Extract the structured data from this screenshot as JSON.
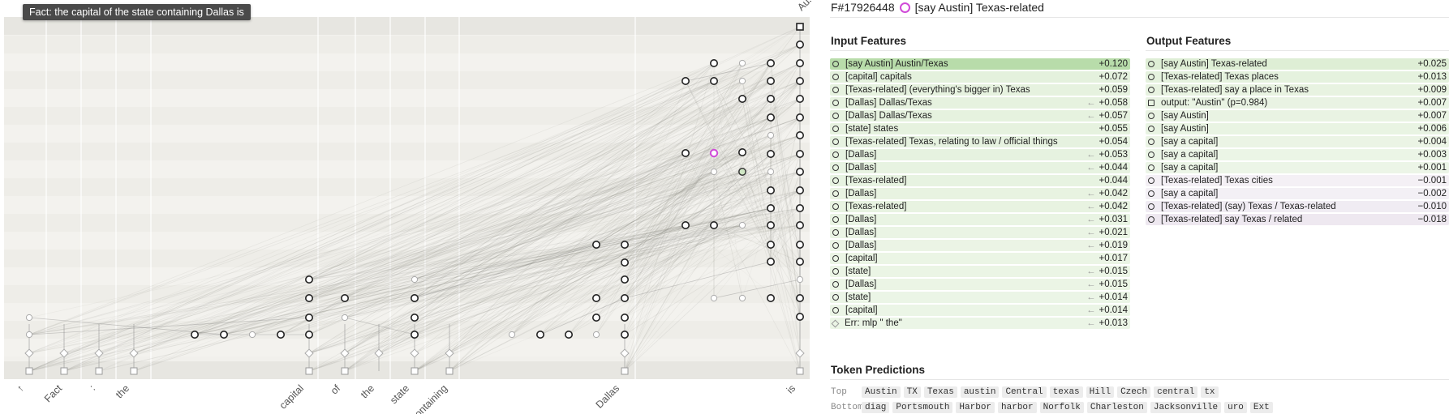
{
  "tooltip": "Fact: the capital of the state containing Dallas is",
  "graph": {
    "tokens": [
      "↑",
      "Fact",
      ":",
      "the",
      "capital",
      "of",
      "the",
      "state",
      "containing",
      "Dallas",
      "is"
    ],
    "top_label": "Aus"
  },
  "header": {
    "id": "F#17926448",
    "title": "[say Austin] Texas-related"
  },
  "input_features": {
    "title": "Input Features",
    "rows": [
      {
        "label": "[say Austin] Austin/Texas",
        "value": "+0.120",
        "arrow": "",
        "icon": "circle"
      },
      {
        "label": "[capital] capitals",
        "value": "+0.072",
        "arrow": "",
        "icon": "circle"
      },
      {
        "label": "[Texas-related] (everything's bigger in) Texas",
        "value": "+0.059",
        "arrow": "",
        "icon": "circle"
      },
      {
        "label": "[Dallas] Dallas/Texas",
        "value": "+0.058",
        "arrow": "←",
        "icon": "circle"
      },
      {
        "label": "[Dallas] Dallas/Texas",
        "value": "+0.057",
        "arrow": "←",
        "icon": "circle"
      },
      {
        "label": "[state] states",
        "value": "+0.055",
        "arrow": "",
        "icon": "circle"
      },
      {
        "label": "[Texas-related] Texas, relating to law / official things",
        "value": "+0.054",
        "arrow": "",
        "icon": "circle"
      },
      {
        "label": "[Dallas]",
        "value": "+0.053",
        "arrow": "←",
        "icon": "circle"
      },
      {
        "label": "[Dallas]",
        "value": "+0.044",
        "arrow": "←",
        "icon": "circle"
      },
      {
        "label": "[Texas-related]",
        "value": "+0.044",
        "arrow": "",
        "icon": "circle"
      },
      {
        "label": "[Dallas]",
        "value": "+0.042",
        "arrow": "←",
        "icon": "circle"
      },
      {
        "label": "[Texas-related]",
        "value": "+0.042",
        "arrow": "←",
        "icon": "circle"
      },
      {
        "label": "[Dallas]",
        "value": "+0.031",
        "arrow": "←",
        "icon": "circle"
      },
      {
        "label": "[Dallas]",
        "value": "+0.021",
        "arrow": "←",
        "icon": "circle"
      },
      {
        "label": "[Dallas]",
        "value": "+0.019",
        "arrow": "←",
        "icon": "circle"
      },
      {
        "label": "[capital]",
        "value": "+0.017",
        "arrow": "",
        "icon": "circle"
      },
      {
        "label": "[state]",
        "value": "+0.015",
        "arrow": "←",
        "icon": "circle"
      },
      {
        "label": "[Dallas]",
        "value": "+0.015",
        "arrow": "←",
        "icon": "circle"
      },
      {
        "label": "[state]",
        "value": "+0.014",
        "arrow": "←",
        "icon": "circle"
      },
      {
        "label": "[capital]",
        "value": "+0.014",
        "arrow": "←",
        "icon": "circle"
      },
      {
        "label": "Err: mlp \" the\"",
        "value": "+0.013",
        "arrow": "←",
        "icon": "diamond"
      }
    ]
  },
  "output_features": {
    "title": "Output Features",
    "rows": [
      {
        "label": "[say Austin] Texas-related",
        "value": "+0.025",
        "icon": "circle"
      },
      {
        "label": "[Texas-related] Texas places",
        "value": "+0.013",
        "icon": "circle"
      },
      {
        "label": "[Texas-related] say a place in Texas",
        "value": "+0.009",
        "icon": "circle"
      },
      {
        "label": "output: \"Austin\" (p=0.984)",
        "value": "+0.007",
        "icon": "square"
      },
      {
        "label": "[say Austin]",
        "value": "+0.007",
        "icon": "circle"
      },
      {
        "label": "[say Austin]",
        "value": "+0.006",
        "icon": "circle"
      },
      {
        "label": "[say a capital]",
        "value": "+0.004",
        "icon": "circle"
      },
      {
        "label": "[say a capital]",
        "value": "+0.003",
        "icon": "circle"
      },
      {
        "label": "[say a capital]",
        "value": "+0.001",
        "icon": "circle"
      },
      {
        "label": "[Texas-related] Texas cities",
        "value": "−0.001",
        "icon": "circle"
      },
      {
        "label": "[say a capital]",
        "value": "−0.002",
        "icon": "circle"
      },
      {
        "label": "[Texas-related] (say) Texas / Texas-related",
        "value": "−0.010",
        "icon": "circle"
      },
      {
        "label": "[Texas-related] say Texas / related",
        "value": "−0.018",
        "icon": "circle"
      }
    ]
  },
  "token_predictions": {
    "title": "Token Predictions",
    "top_label": "Top",
    "bottom_label": "Bottom",
    "top": [
      "Austin",
      "TX",
      "Texas",
      "austin",
      "Central",
      "texas",
      "Hill",
      "Czech",
      "central",
      "tx"
    ],
    "bottom": [
      "diag",
      "Portsmouth",
      "Harbor",
      "harbor",
      "Norfolk",
      "Charleston",
      "Jacksonville",
      "uro",
      "Ext"
    ]
  },
  "colors": {
    "positive_bar": "#b8dcaa",
    "positive_bar_light": "#deeed5",
    "negative_bar": "#ebe5ee",
    "highlight": "#d04ad8"
  }
}
